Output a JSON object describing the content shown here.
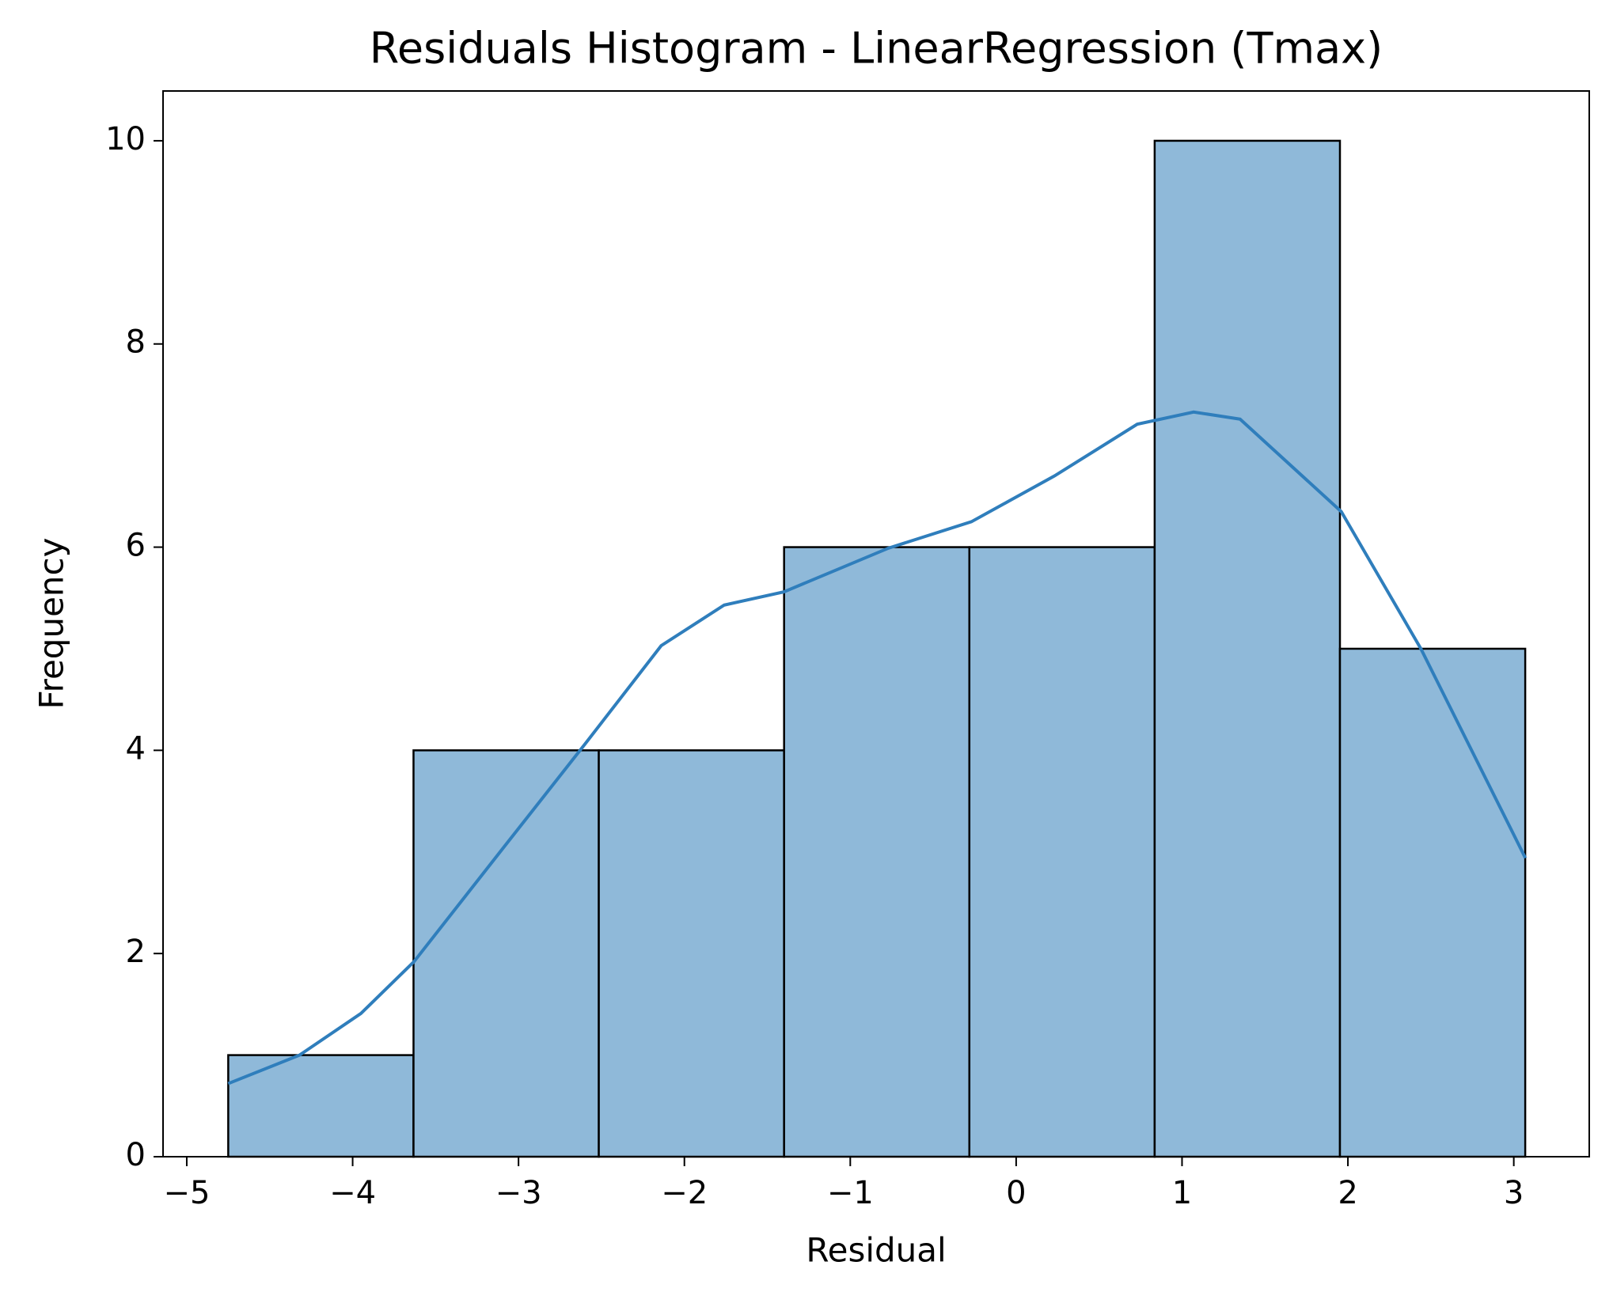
{
  "chart_data": {
    "type": "histogram",
    "title": "Residuals Histogram - LinearRegression (Tmax)",
    "x_label": "Residual",
    "y_label": "Frequency",
    "bins": [
      -4.75,
      -3.633,
      -2.516,
      -1.399,
      -0.282,
      0.835,
      1.952,
      3.069
    ],
    "counts": [
      1,
      4,
      4,
      6,
      6,
      10,
      5
    ],
    "color": "#8fb9d9",
    "edge_color": "#000000",
    "kde": {
      "color": "#2f7ebc",
      "x": [
        -4.75,
        -4.32,
        -3.95,
        -3.63,
        -3.14,
        -2.6,
        -2.14,
        -1.76,
        -1.4,
        -0.77,
        -0.27,
        0.23,
        0.73,
        1.07,
        1.35,
        1.96,
        2.44,
        3.07
      ],
      "values": [
        0.72,
        1.0,
        1.41,
        1.92,
        2.94,
        4.06,
        5.03,
        5.43,
        5.56,
        5.99,
        6.25,
        6.7,
        7.21,
        7.33,
        7.26,
        6.35,
        5.0,
        2.94
      ]
    },
    "xlim": [
      -5.143,
      3.455
    ],
    "ylim": [
      0,
      10.49
    ],
    "xticks": [
      {
        "value": -5,
        "label": "−5"
      },
      {
        "value": -4,
        "label": "−4"
      },
      {
        "value": -3,
        "label": "−3"
      },
      {
        "value": -2,
        "label": "−2"
      },
      {
        "value": -1,
        "label": "−1"
      },
      0,
      1,
      2,
      3
    ],
    "yticks": [
      0,
      2,
      4,
      6,
      8,
      10
    ],
    "grid": false
  }
}
